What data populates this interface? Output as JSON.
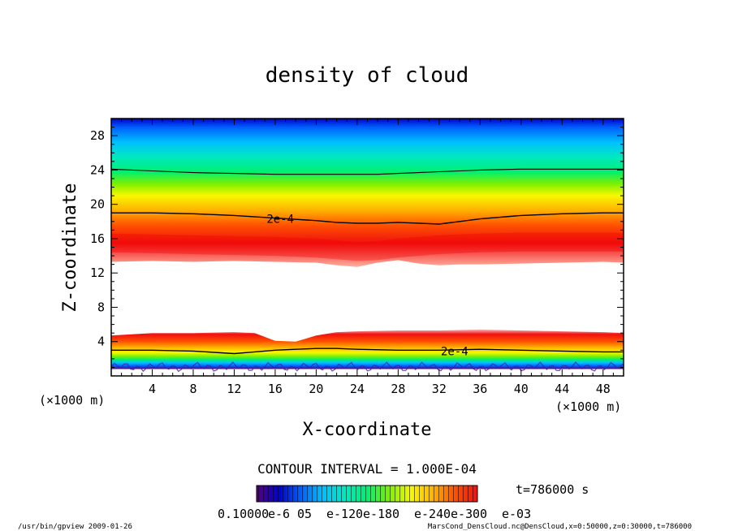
{
  "chart_data": {
    "type": "heatmap",
    "title": "density of cloud",
    "xlabel": "X-coordinate",
    "ylabel": "Z-coordinate",
    "x_unit_label": "(×1000 m)",
    "y_unit_label": "(×1000 m)",
    "xlim": [
      0,
      50
    ],
    "ylim": [
      0,
      30
    ],
    "x_ticks": [
      4,
      8,
      12,
      16,
      20,
      24,
      28,
      32,
      36,
      40,
      44,
      48
    ],
    "y_ticks": [
      4,
      8,
      12,
      16,
      20,
      24,
      28
    ],
    "contour_labels": [
      {
        "text": "2e-4",
        "x": 16.5,
        "z": 18.3
      },
      {
        "text": "2e-4",
        "x": 33.5,
        "z": 2.9
      }
    ],
    "upper_layer": {
      "x": [
        0,
        4,
        8,
        12,
        16,
        20,
        22,
        24,
        26,
        28,
        30,
        32,
        34,
        36,
        40,
        44,
        48,
        50
      ],
      "bottom": [
        13.3,
        13.4,
        13.3,
        13.4,
        13.3,
        13.2,
        12.9,
        12.7,
        13.2,
        13.5,
        13.1,
        12.9,
        13.0,
        13.0,
        13.1,
        13.2,
        13.3,
        13.2
      ],
      "peak": [
        15.4,
        15.3,
        15.2,
        15.1,
        15.0,
        14.8,
        14.6,
        14.4,
        14.5,
        14.8,
        15.0,
        15.2,
        15.3,
        15.4,
        15.5,
        15.5,
        15.5,
        15.5
      ],
      "contour": [
        19.0,
        19.0,
        18.9,
        18.7,
        18.4,
        18.1,
        17.9,
        17.8,
        17.8,
        17.9,
        17.8,
        17.7,
        18.0,
        18.3,
        18.7,
        18.9,
        19.0,
        19.0
      ],
      "contour2": [
        24.1,
        23.9,
        23.7,
        23.6,
        23.5,
        23.5,
        23.5,
        23.5,
        23.5,
        23.6,
        23.7,
        23.8,
        23.9,
        24.0,
        24.1,
        24.1,
        24.1,
        24.1
      ]
    },
    "lower_layer": {
      "x": [
        0,
        4,
        8,
        12,
        14,
        16,
        18,
        20,
        22,
        24,
        28,
        32,
        36,
        40,
        44,
        48,
        50
      ],
      "top": [
        4.7,
        5.0,
        5.0,
        5.1,
        5.0,
        4.1,
        4.0,
        4.7,
        5.1,
        5.2,
        5.3,
        5.3,
        5.4,
        5.3,
        5.2,
        5.1,
        5.0
      ],
      "contour": [
        3.0,
        3.0,
        2.9,
        2.6,
        2.8,
        3.0,
        3.1,
        3.2,
        3.2,
        3.1,
        3.0,
        3.0,
        3.1,
        3.0,
        2.9,
        2.8,
        2.8
      ]
    },
    "colorbar": {
      "min_label": "0.10000",
      "overlapping_labels": [
        "e-6",
        "05",
        "e-12",
        "0e-1",
        "80",
        "e-24",
        "0e-3",
        "00",
        "e-03"
      ]
    }
  },
  "contour_interval_text": "CONTOUR INTERVAL = 1.000E-04",
  "time_text": "t=786000 s",
  "footer_left": "/usr/bin/gpview  2009-01-26",
  "footer_right": "MarsCond_DensCloud.nc@DensCloud,x=0:50000,z=0:30000,t=786000",
  "colors": {
    "scale": [
      "#5a0080",
      "#0000cc",
      "#0060ff",
      "#00c0ff",
      "#00e8c0",
      "#00f070",
      "#7cf000",
      "#f8f800",
      "#ffb000",
      "#ff5000",
      "#f01010"
    ]
  }
}
